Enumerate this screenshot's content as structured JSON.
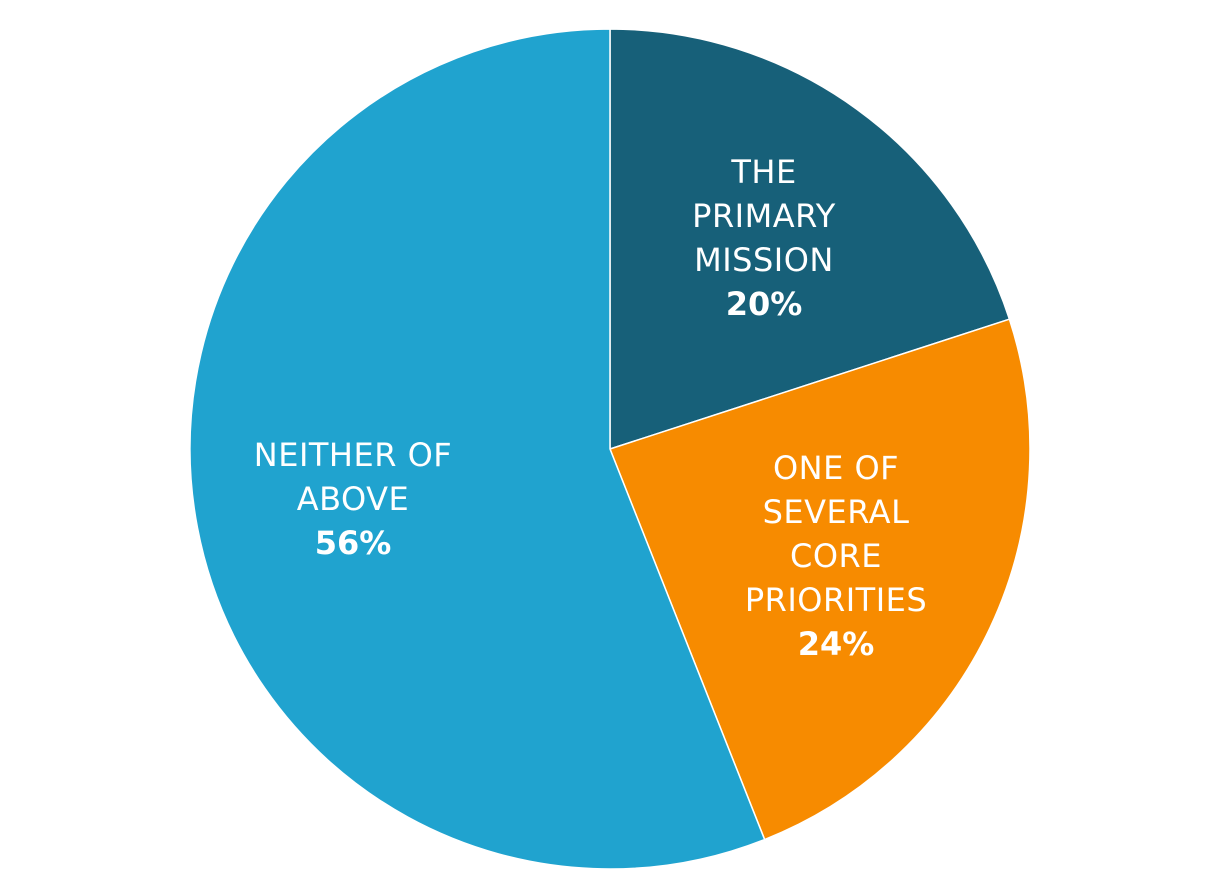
{
  "chart_data": {
    "type": "pie",
    "slices": [
      {
        "label_lines": [
          "THE",
          "PRIMARY",
          "MISSION"
        ],
        "value": 20,
        "value_label": "20%",
        "color": "#176079"
      },
      {
        "label_lines": [
          "ONE OF",
          "SEVERAL",
          "CORE",
          "PRIORITIES"
        ],
        "value": 24,
        "value_label": "24%",
        "color": "#f78b00"
      },
      {
        "label_lines": [
          "NEITHER OF",
          "ABOVE"
        ],
        "value": 56,
        "value_label": "56%",
        "color": "#20a3cf"
      }
    ],
    "start": "top",
    "direction": "clockwise",
    "legend": "none"
  }
}
